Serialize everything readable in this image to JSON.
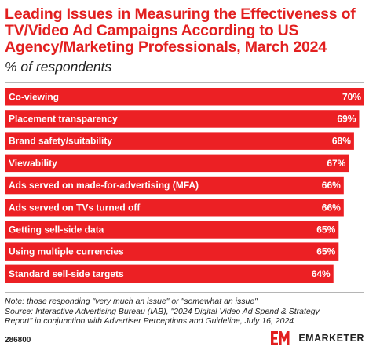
{
  "header": {
    "title": "Leading Issues in Measuring the Effectiveness of TV/Video Ad Campaigns According to US Agency/Marketing Professionals, March 2024",
    "subtitle": "% of respondents"
  },
  "colors": {
    "accent": "#e22020",
    "bar": "#ec2024",
    "text": "#222222"
  },
  "chart_data": {
    "type": "bar",
    "orientation": "horizontal",
    "title": "Leading Issues in Measuring the Effectiveness of TV/Video Ad Campaigns According to US Agency/Marketing Professionals, March 2024",
    "ylabel": "% of respondents",
    "xlim": [
      0,
      70
    ],
    "grid": false,
    "legend": "none",
    "categories": [
      "Co-viewing",
      "Placement transparency",
      "Brand safety/suitability",
      "Viewability",
      "Ads served on made-for-advertising (MFA)",
      "Ads served on TVs turned off",
      "Getting sell-side data",
      "Using multiple currencies",
      "Standard sell-side targets"
    ],
    "values": [
      70,
      69,
      68,
      67,
      66,
      66,
      65,
      65,
      64
    ],
    "value_labels": [
      "70%",
      "69%",
      "68%",
      "67%",
      "66%",
      "66%",
      "65%",
      "65%",
      "64%"
    ]
  },
  "notes": {
    "line1": "Note: those responding \"very much an issue\" or \"somewhat an issue\"",
    "line2": "Source: Interactive Advertising Bureau (IAB), \"2024 Digital Video Ad Spend & Strategy",
    "line3": "Report\" in conjunction with Advertiser Perceptions and Guideline, July 16, 2024"
  },
  "footer": {
    "chart_id": "286800",
    "logo_text": "EMARKETER",
    "logo_icon": "em-logo-icon"
  }
}
